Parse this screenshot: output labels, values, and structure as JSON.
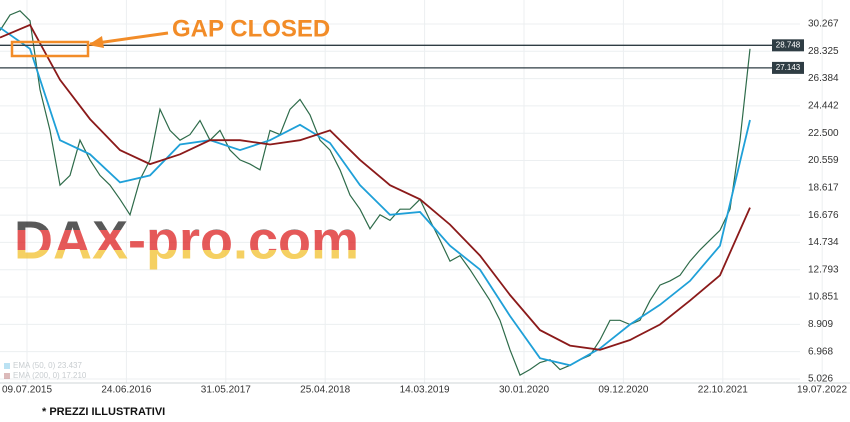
{
  "chart_data": {
    "type": "line",
    "annotation": "GAP CLOSED",
    "watermark": "DAX-pro.com",
    "footnote": "* PREZZI ILLUSTRATIVI",
    "xticks": [
      "09.07.2015",
      "24.06.2016",
      "31.05.2017",
      "25.04.2018",
      "14.03.2019",
      "30.01.2020",
      "09.12.2020",
      "22.10.2021",
      "19.07.2022"
    ],
    "ylim": [
      4.74,
      31.97
    ],
    "yticks": [
      5.026,
      6.968,
      8.909,
      10.851,
      12.793,
      14.734,
      16.676,
      18.617,
      20.559,
      {
        "value": 22.5,
        "label": "22.500"
      },
      24.442,
      26.384,
      28.325,
      30.267
    ],
    "levels": [
      28.748,
      27.143
    ],
    "grid": true,
    "series": [
      {
        "color": "#2e6b4a",
        "values": [
          29.8,
          30.9,
          31.2,
          30.5,
          25.6,
          22.7,
          18.8,
          19.5,
          22.0,
          20.6,
          19.5,
          18.8,
          17.8,
          16.7,
          19.2,
          20.6,
          24.2,
          22.7,
          22.0,
          22.4,
          23.4,
          22.0,
          22.7,
          21.3,
          20.6,
          20.3,
          19.9,
          22.7,
          22.4,
          24.2,
          24.9,
          23.8,
          22.0,
          21.3,
          19.9,
          18.1,
          17.1,
          15.7,
          16.7,
          16.3,
          17.1,
          17.1,
          17.8,
          16.3,
          14.9,
          13.4,
          13.8,
          12.8,
          11.7,
          10.6,
          9.2,
          7.1,
          5.3,
          5.7,
          6.2,
          6.4,
          5.7,
          6.0,
          6.4,
          6.7,
          7.8,
          9.2,
          9.2,
          8.9,
          9.2,
          10.6,
          11.7,
          12.0,
          12.4,
          13.4,
          14.2,
          14.9,
          15.6,
          17.1,
          22.0,
          28.5
        ]
      },
      {
        "name": "EMA (50, 0) 23.437",
        "color": "#1fa0d8",
        "values": [
          30.0,
          28.5,
          22.0,
          21.0,
          19.0,
          19.5,
          21.7,
          22.0,
          21.3,
          22.0,
          23.1,
          21.8,
          18.8,
          16.7,
          16.9,
          14.5,
          12.8,
          9.5,
          6.5,
          6.0,
          7.2,
          8.9,
          10.3,
          12.0,
          14.5,
          23.437
        ]
      },
      {
        "name": "EMA (200, 0) 17.210",
        "color": "#8b1a1a",
        "values": [
          29.3,
          30.2,
          26.3,
          23.5,
          21.3,
          20.3,
          21.0,
          22.0,
          22.0,
          21.7,
          22.0,
          22.7,
          20.6,
          18.8,
          17.8,
          16.0,
          13.8,
          11.0,
          8.5,
          7.4,
          7.1,
          7.8,
          8.9,
          10.6,
          12.4,
          17.21
        ]
      }
    ]
  }
}
